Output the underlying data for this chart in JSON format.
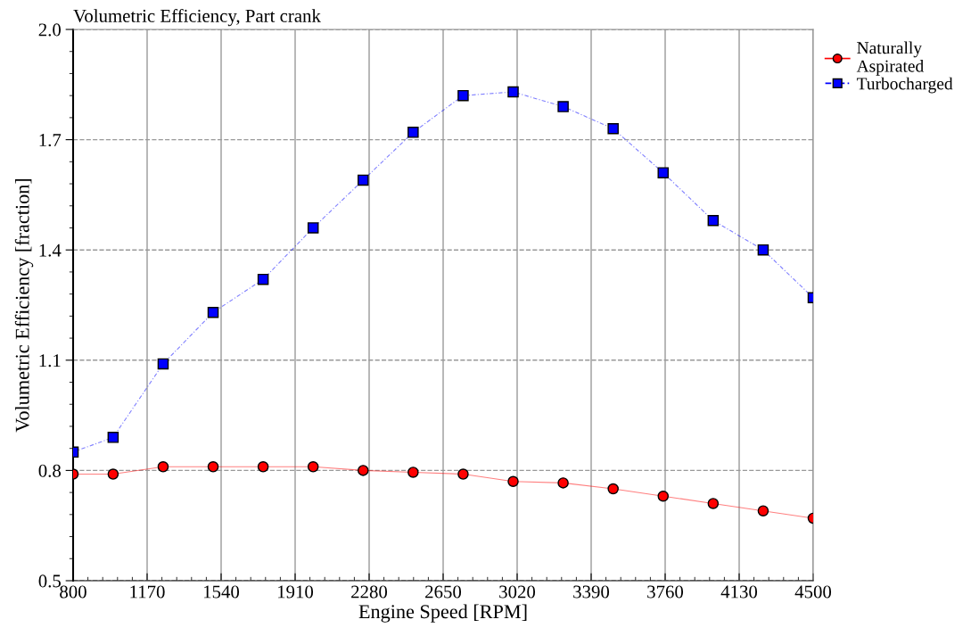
{
  "chart_data": {
    "type": "line",
    "title": "Volumetric Efficiency, Part crank",
    "xlabel": "Engine Speed [RPM]",
    "ylabel": "Volumetric Efficiency [fraction]",
    "x": [
      800,
      1000,
      1250,
      1500,
      1750,
      2000,
      2250,
      2500,
      2750,
      3000,
      3250,
      3500,
      3750,
      4000,
      4250,
      4500
    ],
    "series": [
      {
        "name": "Naturally\nAspirated",
        "color": "#ff0000",
        "marker": "circle",
        "line_style": "solid",
        "values": [
          0.79,
          0.79,
          0.81,
          0.81,
          0.81,
          0.81,
          0.8,
          0.795,
          0.79,
          0.77,
          0.766,
          0.75,
          0.73,
          0.71,
          0.69,
          0.67
        ]
      },
      {
        "name": "Turbocharged",
        "color": "#0000ff",
        "marker": "square",
        "line_style": "dashed",
        "values": [
          0.85,
          0.89,
          1.09,
          1.23,
          1.32,
          1.46,
          1.59,
          1.72,
          1.82,
          1.83,
          1.79,
          1.73,
          1.61,
          1.48,
          1.4,
          1.27
        ]
      }
    ],
    "xlim": [
      800,
      4500
    ],
    "xticks": [
      800,
      1170,
      1540,
      1910,
      2280,
      2650,
      3020,
      3390,
      3760,
      4130,
      4500
    ],
    "ylim": [
      0.5,
      2.0
    ],
    "yticks": [
      0.5,
      0.8,
      1.1,
      1.4,
      1.7,
      {
        "value": 2,
        "label": "2.0"
      }
    ],
    "grid": true,
    "legend": "top right"
  }
}
